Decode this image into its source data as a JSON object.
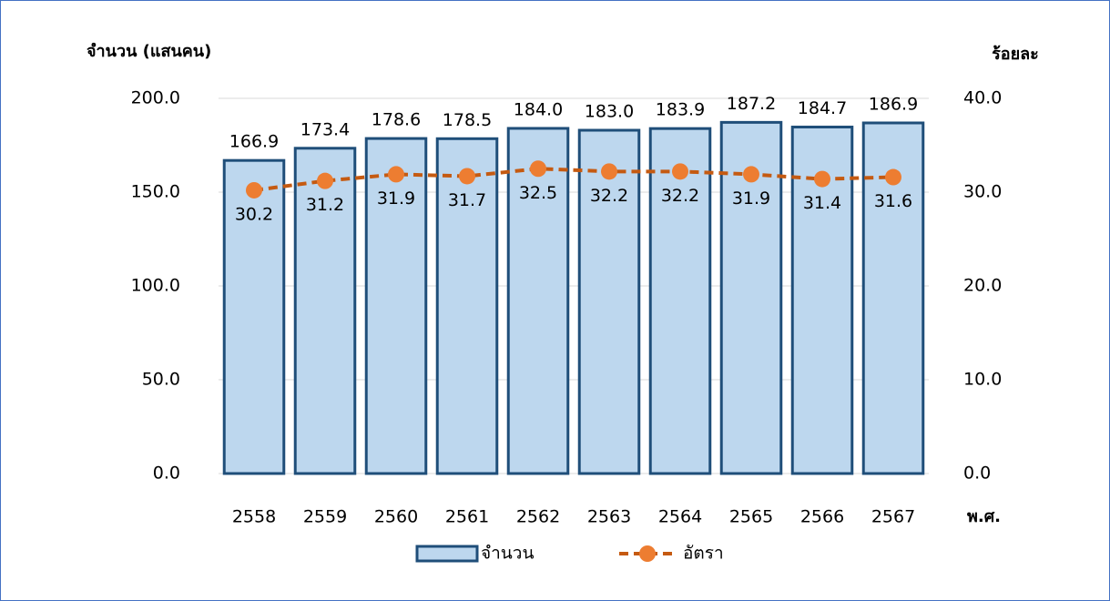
{
  "chart_data": {
    "type": "bar-line",
    "y_label": "จำนวน (แสนคน)",
    "y2_label": "ร้อยละ",
    "x_label": "พ.ศ.",
    "categories": [
      "2558",
      "2559",
      "2560",
      "2561",
      "2562",
      "2563",
      "2564",
      "2565",
      "2566",
      "2567"
    ],
    "series": [
      {
        "name": "จำนวน",
        "type": "bar",
        "color": "#bdd7ee",
        "edge_color": "#1f4e79",
        "values": [
          166.9,
          173.4,
          178.6,
          178.5,
          184.0,
          183.0,
          183.9,
          187.2,
          184.7,
          186.9
        ],
        "value_labels": [
          "166.9",
          "173.4",
          "178.6",
          "178.5",
          "184.0",
          "183.0",
          "183.9",
          "187.2",
          "184.7",
          "186.9"
        ]
      },
      {
        "name": "อัตรา",
        "type": "line",
        "axis": "y2",
        "color": "#ed7d31",
        "line_color": "#c55a11",
        "values": [
          30.2,
          31.2,
          31.9,
          31.7,
          32.5,
          32.2,
          32.2,
          31.9,
          31.4,
          31.6
        ]
      }
    ],
    "ylim": [
      0,
      200
    ],
    "yticks": [
      {
        "value": 0,
        "label": "0.0"
      },
      {
        "value": 50,
        "label": "50.0"
      },
      {
        "value": 100,
        "label": "100.0"
      },
      {
        "value": 150,
        "label": "150.0"
      },
      {
        "value": 200,
        "label": "200.0"
      }
    ],
    "y2lim": [
      0,
      40
    ],
    "y2ticks": [
      {
        "value": 0,
        "label": "0.0"
      },
      {
        "value": 10,
        "label": "10.0"
      },
      {
        "value": 20,
        "label": "20.0"
      },
      {
        "value": 30,
        "label": "30.0"
      },
      {
        "value": 40,
        "label": "40.0"
      }
    ],
    "grid": true,
    "legend": "bottom"
  }
}
